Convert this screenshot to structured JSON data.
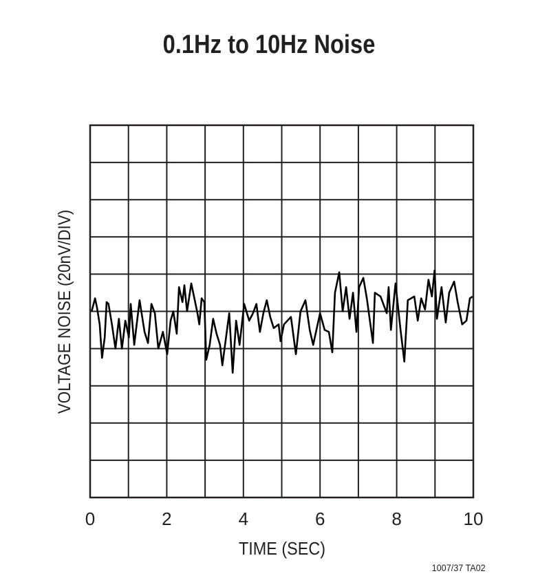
{
  "chart_data": {
    "type": "line",
    "title": "0.1Hz to 10Hz Noise",
    "xlabel": "TIME (SEC)",
    "ylabel": "VOLTAGE NOISE (20nV/DIV)",
    "xlim": [
      0,
      10
    ],
    "ylim": [
      -100,
      100
    ],
    "x_ticks": [
      "0",
      "2",
      "4",
      "6",
      "8",
      "10"
    ],
    "x_tick_values": [
      0,
      2,
      4,
      6,
      8,
      10
    ],
    "x_divisions": 10,
    "y_divisions": 10,
    "grid": true,
    "footnote": "1007/37 TA02",
    "series": [
      {
        "name": "noise",
        "unit": "nV",
        "t": [
          0.04,
          0.13,
          0.18,
          0.25,
          0.31,
          0.38,
          0.43,
          0.48,
          0.57,
          0.66,
          0.75,
          0.83,
          0.92,
          1.01,
          1.06,
          1.15,
          1.29,
          1.42,
          1.51,
          1.6,
          1.69,
          1.78,
          1.9,
          2.01,
          2.1,
          2.17,
          2.26,
          2.32,
          2.41,
          2.46,
          2.53,
          2.64,
          2.73,
          2.8,
          2.85,
          2.91,
          2.98,
          3.03,
          3.12,
          3.21,
          3.3,
          3.39,
          3.45,
          3.52,
          3.63,
          3.72,
          3.81,
          3.9,
          4.02,
          4.15,
          4.25,
          4.34,
          4.43,
          4.52,
          4.61,
          4.7,
          4.79,
          4.92,
          4.97,
          5.06,
          5.24,
          5.37,
          5.49,
          5.62,
          5.73,
          5.82,
          6.0,
          6.12,
          6.23,
          6.32,
          6.39,
          6.5,
          6.59,
          6.68,
          6.77,
          6.86,
          6.95,
          7.02,
          7.13,
          7.22,
          7.38,
          7.43,
          7.58,
          7.74,
          7.79,
          7.85,
          7.97,
          8.1,
          8.2,
          8.29,
          8.46,
          8.55,
          8.64,
          8.74,
          8.83,
          8.92,
          8.99,
          9.05,
          9.17,
          9.28,
          9.37,
          9.5,
          9.59,
          9.71,
          9.82,
          9.91,
          9.98
        ],
        "v": [
          0,
          7,
          2,
          -7,
          -25,
          -14,
          5,
          4,
          -7,
          -20,
          -4,
          -20,
          -5,
          -14,
          4,
          -18,
          6,
          -11,
          -17,
          4,
          -1,
          -20,
          -11,
          -23,
          -5,
          0,
          -12,
          13,
          5,
          14,
          0,
          15,
          6,
          -1,
          -7,
          7,
          5,
          -26,
          -18,
          -4,
          -12,
          -18,
          -29,
          -18,
          -1,
          -33,
          -5,
          -18,
          4,
          -5,
          -1,
          4,
          -11,
          -1,
          6,
          -3,
          -9,
          -7,
          -16,
          -7,
          -3,
          -23,
          0,
          6,
          -10,
          -18,
          -1,
          -10,
          -11,
          -22,
          10,
          21,
          0,
          13,
          -4,
          10,
          -11,
          13,
          18,
          7,
          -17,
          10,
          8,
          -1,
          13,
          -10,
          15,
          -10,
          -27,
          6,
          8,
          -5,
          7,
          1,
          17,
          8,
          22,
          -4,
          13,
          -6,
          10,
          16,
          5,
          -7,
          -5,
          7,
          8
        ]
      }
    ]
  }
}
